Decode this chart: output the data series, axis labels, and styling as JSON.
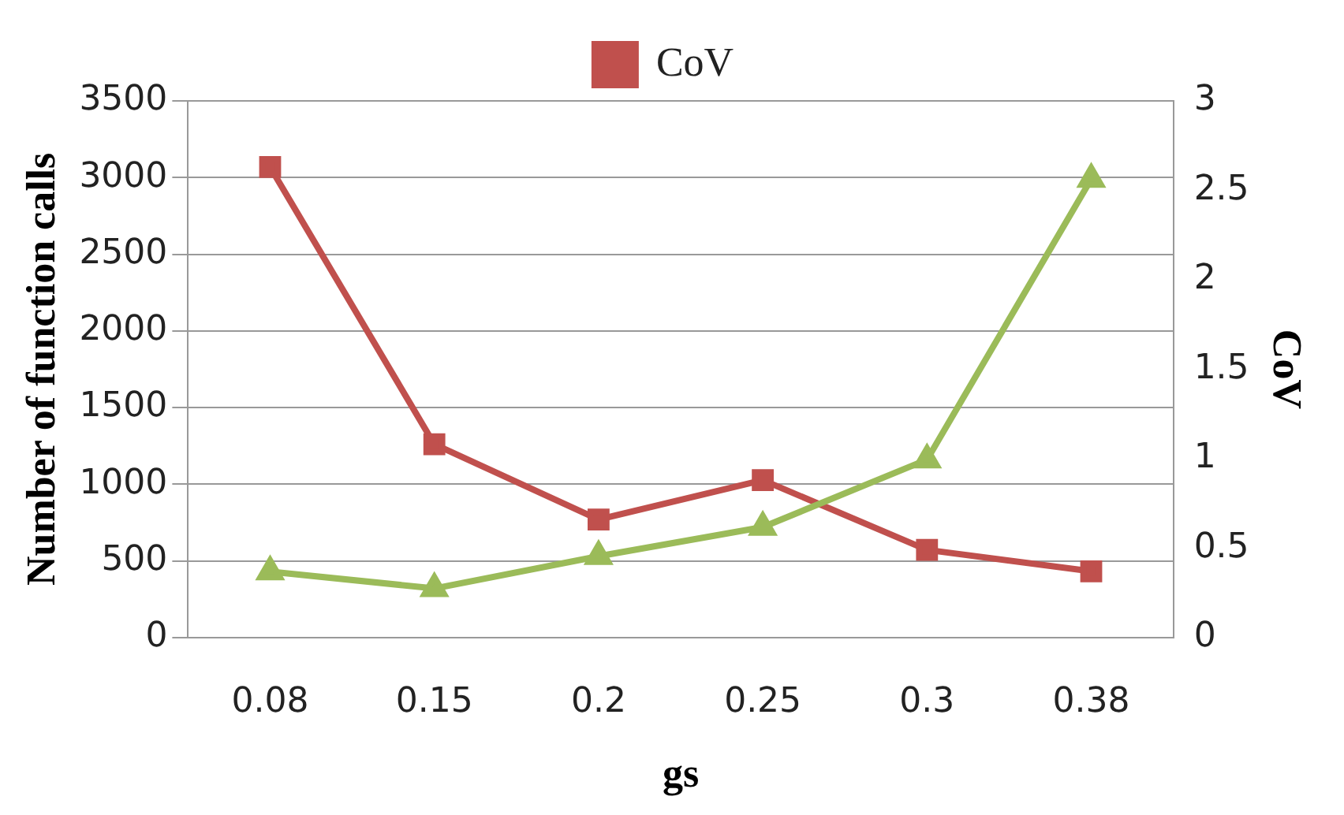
{
  "chart_data": {
    "type": "line",
    "xlabel": "gs",
    "ylabel": "Number of function calls",
    "y2label": "CoV",
    "categories": [
      "0.08",
      "0.15",
      "0.2",
      "0.25",
      "0.3",
      "0.38"
    ],
    "series": [
      {
        "color": "#9bbb59",
        "marker": "triangle",
        "values": [
          430,
          320,
          530,
          720,
          1160,
          2990
        ]
      },
      {
        "name": "CoV",
        "color": "#c0504d",
        "marker": "square",
        "axis": "y2",
        "values": [
          2.63,
          1.08,
          0.66,
          0.88,
          0.49,
          0.37
        ]
      }
    ],
    "ylim": [
      0,
      3500
    ],
    "yticks": [
      0,
      500,
      1000,
      1500,
      2000,
      2500,
      3000,
      3500
    ],
    "y2lim": [
      0,
      3
    ],
    "y2ticks": [
      0,
      0.5,
      1,
      1.5,
      2,
      2.5,
      3
    ],
    "grid": "y",
    "legend": "top"
  }
}
